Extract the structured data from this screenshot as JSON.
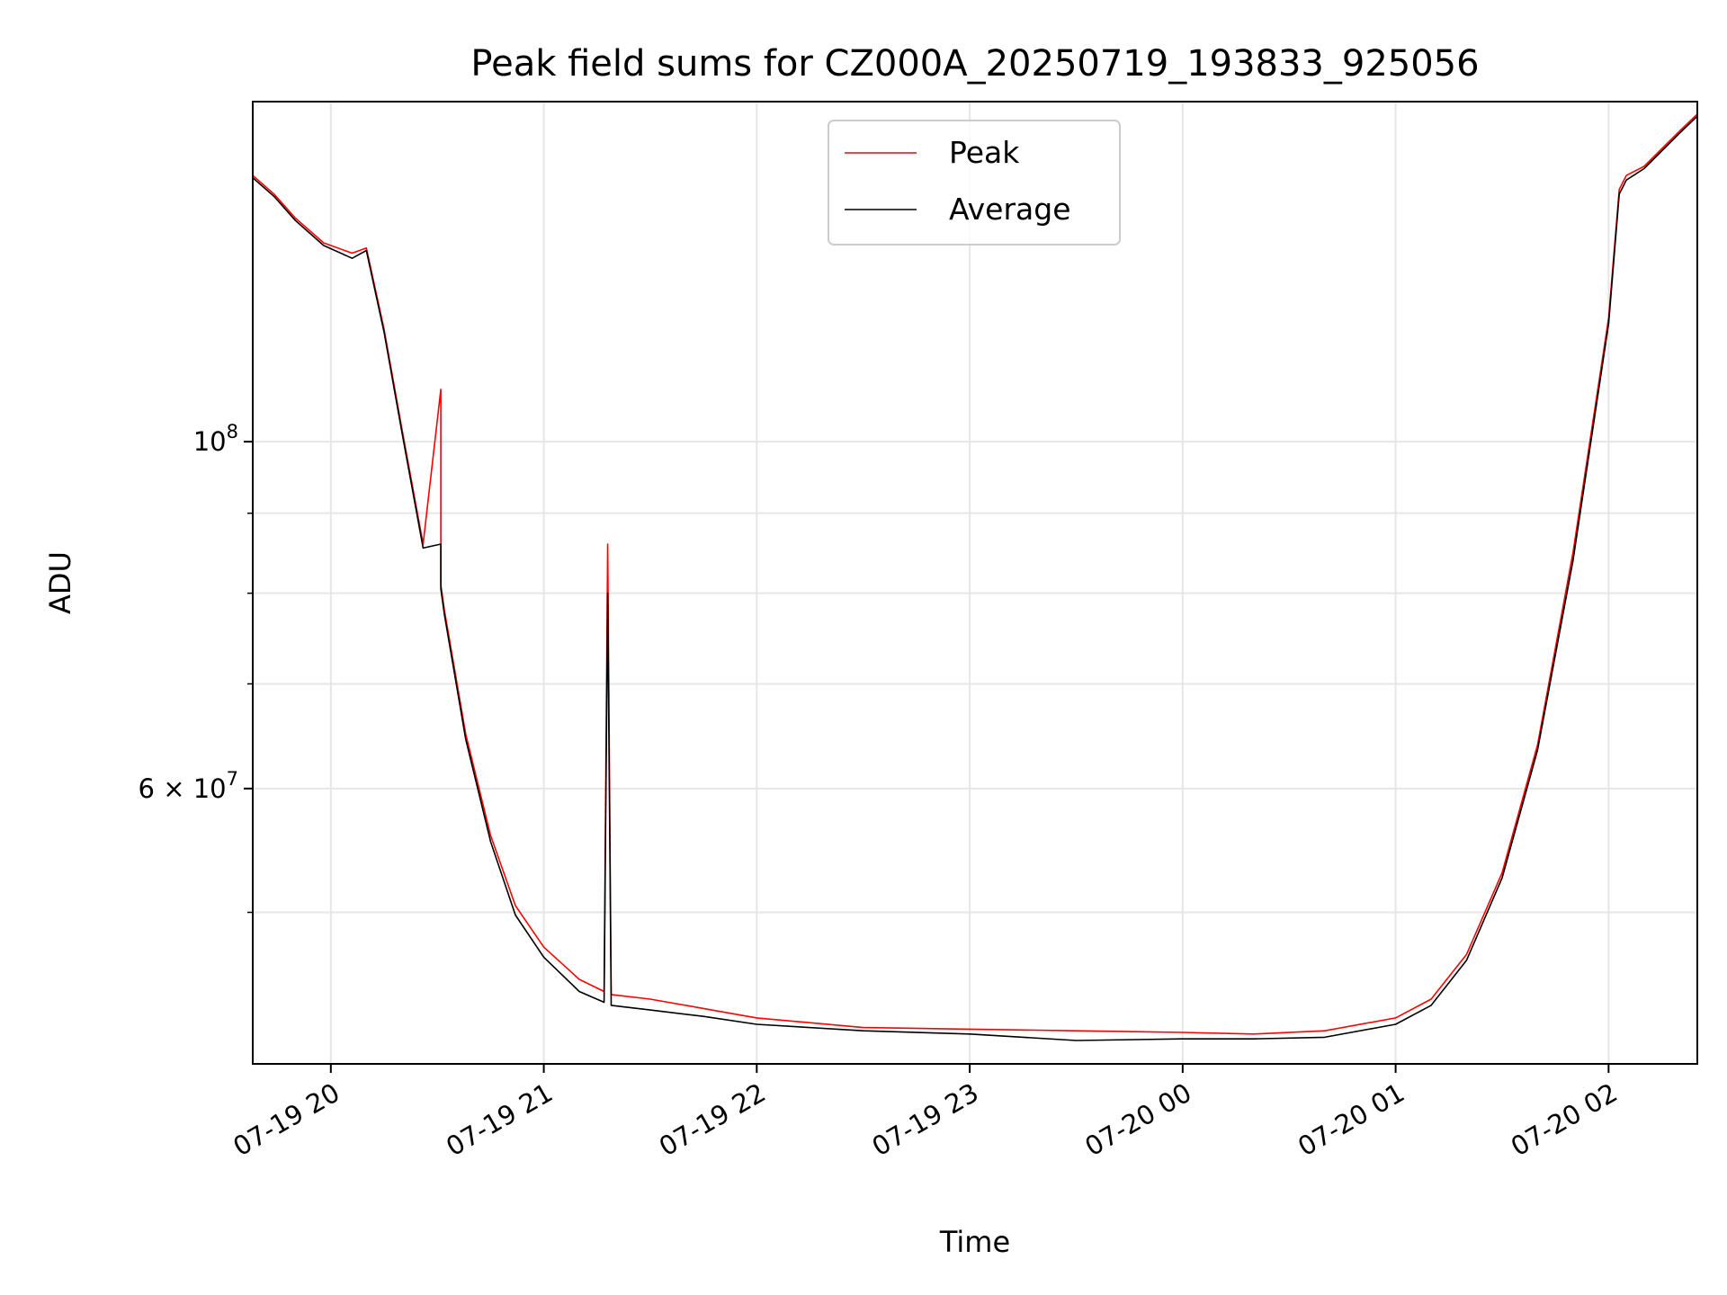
{
  "chart_data": {
    "type": "line",
    "title": "Peak field sums for CZ000A_20250719_193833_925056",
    "xlabel": "Time",
    "ylabel": "ADU",
    "y_scale": "log",
    "ylim": [
      40000000,
      165000000
    ],
    "xlim": [
      "2025-07-19 19:38",
      "2025-07-20 02:25"
    ],
    "x_ticks": [
      {
        "value": "2025-07-19 20:00",
        "label": "07-19 20"
      },
      {
        "value": "2025-07-19 21:00",
        "label": "07-19 21"
      },
      {
        "value": "2025-07-19 22:00",
        "label": "07-19 22"
      },
      {
        "value": "2025-07-19 23:00",
        "label": "07-19 23"
      },
      {
        "value": "2025-07-20 00:00",
        "label": "07-20 00"
      },
      {
        "value": "2025-07-20 01:00",
        "label": "07-20 01"
      },
      {
        "value": "2025-07-20 02:00",
        "label": "07-20 02"
      }
    ],
    "y_ticks_major": [
      {
        "value": 100000000,
        "base": "10",
        "exp": "8"
      },
      {
        "value": 60000000,
        "mantissa": "6",
        "base": "10",
        "exp": "7"
      }
    ],
    "y_ticks_minor": [
      50000000,
      70000000,
      80000000,
      90000000
    ],
    "grid": true,
    "legend_position": "upper-center",
    "series": [
      {
        "name": "Peak",
        "color": "#ff0000",
        "x": [
          "2025-07-19 19:38",
          "2025-07-19 19:44",
          "2025-07-19 19:50",
          "2025-07-19 19:58",
          "2025-07-19 20:06",
          "2025-07-19 20:10",
          "2025-07-19 20:15",
          "2025-07-19 20:20",
          "2025-07-19 20:26",
          "2025-07-19 20:31",
          "2025-07-19 20:31",
          "2025-07-19 20:32",
          "2025-07-19 20:38",
          "2025-07-19 20:45",
          "2025-07-19 20:52",
          "2025-07-19 21:00",
          "2025-07-19 21:10",
          "2025-07-19 21:17",
          "2025-07-19 21:18",
          "2025-07-19 21:19",
          "2025-07-19 21:30",
          "2025-07-19 21:45",
          "2025-07-19 22:00",
          "2025-07-19 22:30",
          "2025-07-19 23:00",
          "2025-07-19 23:30",
          "2025-07-20 00:00",
          "2025-07-20 00:20",
          "2025-07-20 00:40",
          "2025-07-20 01:00",
          "2025-07-20 01:10",
          "2025-07-20 01:20",
          "2025-07-20 01:30",
          "2025-07-20 01:40",
          "2025-07-20 01:50",
          "2025-07-20 02:00",
          "2025-07-20 02:03",
          "2025-07-20 02:05",
          "2025-07-20 02:10",
          "2025-07-20 02:20",
          "2025-07-20 02:25"
        ],
        "y": [
          148000000,
          144000000,
          139000000,
          134000000,
          132000000,
          133000000,
          118000000,
          102000000,
          86000000,
          108000000,
          81000000,
          78000000,
          65000000,
          56000000,
          50500000,
          47500000,
          45300000,
          44500000,
          86000000,
          44300000,
          44000000,
          43400000,
          42800000,
          42200000,
          42100000,
          42000000,
          41900000,
          41800000,
          42000000,
          42800000,
          44000000,
          47000000,
          53000000,
          64000000,
          85000000,
          120000000,
          145000000,
          148000000,
          150000000,
          158000000,
          162000000
        ]
      },
      {
        "name": "Average",
        "color": "#000000",
        "x": [
          "2025-07-19 19:38",
          "2025-07-19 19:44",
          "2025-07-19 19:50",
          "2025-07-19 19:58",
          "2025-07-19 20:06",
          "2025-07-19 20:10",
          "2025-07-19 20:15",
          "2025-07-19 20:20",
          "2025-07-19 20:26",
          "2025-07-19 20:31",
          "2025-07-19 20:31",
          "2025-07-19 20:32",
          "2025-07-19 20:38",
          "2025-07-19 20:45",
          "2025-07-19 20:52",
          "2025-07-19 21:00",
          "2025-07-19 21:10",
          "2025-07-19 21:17",
          "2025-07-19 21:18",
          "2025-07-19 21:19",
          "2025-07-19 21:30",
          "2025-07-19 21:45",
          "2025-07-19 22:00",
          "2025-07-19 22:30",
          "2025-07-19 23:00",
          "2025-07-19 23:30",
          "2025-07-20 00:00",
          "2025-07-20 00:20",
          "2025-07-20 00:40",
          "2025-07-20 01:00",
          "2025-07-20 01:10",
          "2025-07-20 01:20",
          "2025-07-20 01:30",
          "2025-07-20 01:40",
          "2025-07-20 01:50",
          "2025-07-20 02:00",
          "2025-07-20 02:03",
          "2025-07-20 02:05",
          "2025-07-20 02:10",
          "2025-07-20 02:20",
          "2025-07-20 02:25"
        ],
        "y": [
          147500000,
          143500000,
          138500000,
          133500000,
          131000000,
          132500000,
          117500000,
          101500000,
          85500000,
          86000000,
          80500000,
          77500000,
          64500000,
          55500000,
          49800000,
          46800000,
          44500000,
          43800000,
          80000000,
          43600000,
          43300000,
          42900000,
          42400000,
          42000000,
          41800000,
          41400000,
          41500000,
          41500000,
          41600000,
          42400000,
          43600000,
          46600000,
          52600000,
          63500000,
          84000000,
          119000000,
          144000000,
          147000000,
          149500000,
          157500000,
          161500000
        ]
      }
    ]
  }
}
